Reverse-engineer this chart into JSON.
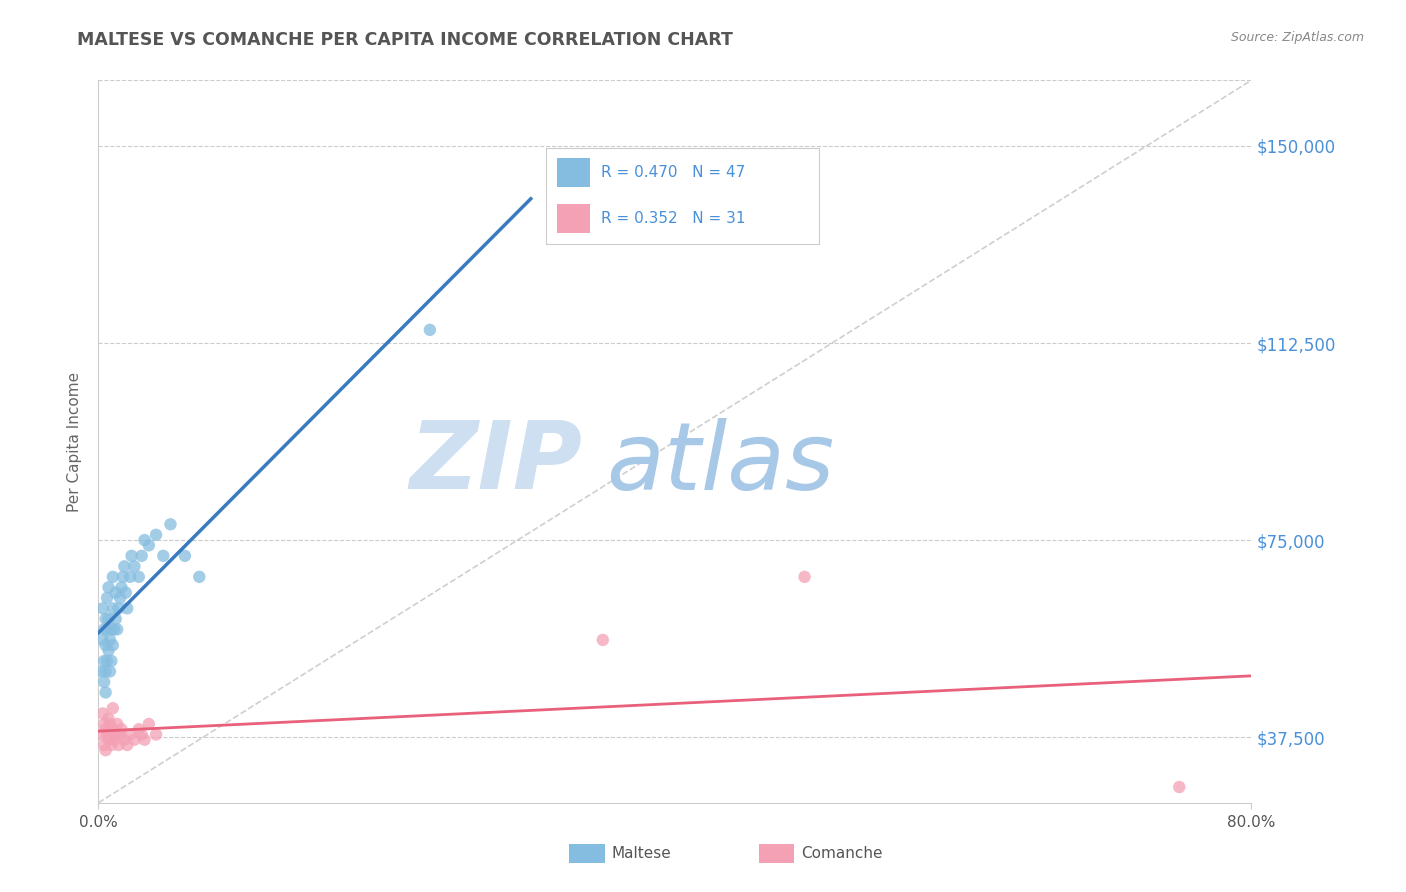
{
  "title": "MALTESE VS COMANCHE PER CAPITA INCOME CORRELATION CHART",
  "source_text": "Source: ZipAtlas.com",
  "ylabel": "Per Capita Income",
  "xlim": [
    0.0,
    0.8
  ],
  "ylim": [
    25000,
    162500
  ],
  "xticks": [
    0.0,
    0.8
  ],
  "xticklabels": [
    "0.0%",
    "80.0%"
  ],
  "yticks_right": [
    37500,
    75000,
    112500,
    150000
  ],
  "ytick_labels_right": [
    "$37,500",
    "$75,000",
    "$112,500",
    "$150,000"
  ],
  "maltese_R": 0.47,
  "maltese_N": 47,
  "comanche_R": 0.352,
  "comanche_N": 31,
  "maltese_color": "#85bde0",
  "comanche_color": "#f4a0b5",
  "maltese_line_color": "#3a7abf",
  "comanche_line_color": "#e8607a",
  "watermark_zip_color": "#c5d8ea",
  "watermark_atlas_color": "#a0bfd8",
  "background_color": "#ffffff",
  "title_color": "#555555",
  "axis_label_color": "#666666",
  "right_label_color": "#4a90d9",
  "grid_color": "#cccccc",
  "legend_R_color": "#4a90d9",
  "ref_line_color": "#bbbbbb",
  "maltese_x": [
    0.002,
    0.003,
    0.003,
    0.004,
    0.004,
    0.004,
    0.005,
    0.005,
    0.005,
    0.005,
    0.006,
    0.006,
    0.006,
    0.007,
    0.007,
    0.007,
    0.008,
    0.008,
    0.009,
    0.009,
    0.01,
    0.01,
    0.01,
    0.011,
    0.012,
    0.012,
    0.013,
    0.014,
    0.015,
    0.016,
    0.017,
    0.018,
    0.019,
    0.02,
    0.022,
    0.023,
    0.025,
    0.028,
    0.03,
    0.032,
    0.035,
    0.04,
    0.045,
    0.05,
    0.06,
    0.23,
    0.07
  ],
  "maltese_y": [
    50000,
    56000,
    62000,
    52000,
    58000,
    48000,
    46000,
    50000,
    55000,
    60000,
    52000,
    58000,
    64000,
    54000,
    60000,
    66000,
    50000,
    56000,
    52000,
    58000,
    55000,
    62000,
    68000,
    58000,
    60000,
    65000,
    58000,
    62000,
    64000,
    66000,
    68000,
    70000,
    65000,
    62000,
    68000,
    72000,
    70000,
    68000,
    72000,
    75000,
    74000,
    76000,
    72000,
    78000,
    72000,
    115000,
    68000
  ],
  "comanche_x": [
    0.002,
    0.003,
    0.004,
    0.004,
    0.005,
    0.005,
    0.006,
    0.007,
    0.007,
    0.008,
    0.009,
    0.01,
    0.01,
    0.011,
    0.012,
    0.013,
    0.014,
    0.015,
    0.016,
    0.018,
    0.02,
    0.022,
    0.025,
    0.028,
    0.03,
    0.032,
    0.035,
    0.04,
    0.35,
    0.49,
    0.75
  ],
  "comanche_y": [
    38000,
    42000,
    36000,
    40000,
    35000,
    39000,
    38000,
    37000,
    41000,
    40000,
    36000,
    39000,
    43000,
    37000,
    38000,
    40000,
    36000,
    38000,
    39000,
    37000,
    36000,
    38000,
    37000,
    39000,
    38000,
    37000,
    40000,
    38000,
    56000,
    68000,
    28000
  ],
  "ref_line_x": [
    0.0,
    0.8
  ],
  "ref_line_y": [
    25000,
    162500
  ]
}
